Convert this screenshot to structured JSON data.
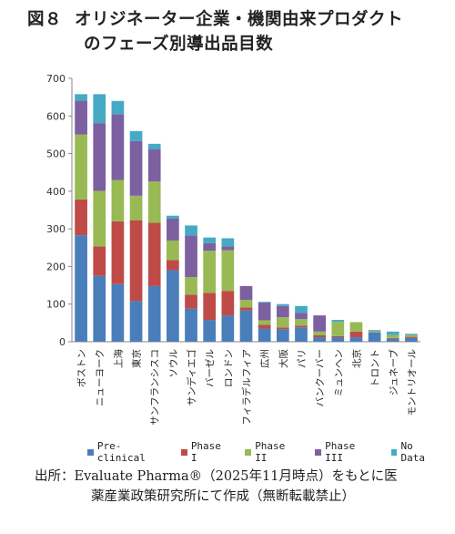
{
  "title": {
    "label": "図８",
    "line1": "オリジネーター企業・機関由来プロダクト",
    "line2": "のフェーズ別導出品目数"
  },
  "source": {
    "line1": "出所：Evaluate Pharma®（2025年11月時点）をもとに医",
    "line2": "薬産業政策研究所にて作成（無断転載禁止）"
  },
  "colors": {
    "preclinical": "#4a7ebb",
    "phase1": "#be4b48",
    "phase2": "#98b954",
    "phase3": "#7d60a0",
    "nodata": "#46aac5"
  },
  "chart_data": {
    "type": "bar",
    "stacked": true,
    "ylim": [
      0,
      700
    ],
    "yticks": [
      0,
      100,
      200,
      300,
      400,
      500,
      600,
      700
    ],
    "grid": false,
    "legend_position": "bottom",
    "categories": [
      "ボストン",
      "ニューヨーク",
      "上海",
      "東京",
      "サンフランシスコ",
      "ソウル",
      "サンディエゴ",
      "バーゼル",
      "ロンドン",
      "フィラデルフィア",
      "広州",
      "大阪",
      "パリ",
      "バンクーバー",
      "ミュンヘン",
      "北京",
      "トロント",
      "ジュネーブ",
      "モントリオール"
    ],
    "series": [
      {
        "name": "Pre-clinical",
        "values": [
          283,
          175,
          153,
          108,
          148,
          190,
          88,
          58,
          70,
          83,
          35,
          33,
          38,
          12,
          12,
          12,
          25,
          8,
          10
        ]
      },
      {
        "name": "Phase I",
        "values": [
          95,
          78,
          167,
          215,
          168,
          27,
          37,
          72,
          65,
          8,
          10,
          5,
          5,
          5,
          3,
          15,
          0,
          2,
          3
        ]
      },
      {
        "name": "Phase II",
        "values": [
          173,
          148,
          110,
          65,
          110,
          52,
          47,
          112,
          108,
          20,
          12,
          27,
          17,
          10,
          38,
          25,
          3,
          8,
          5
        ]
      },
      {
        "name": "Phase III",
        "values": [
          90,
          180,
          175,
          145,
          85,
          58,
          110,
          20,
          10,
          37,
          47,
          30,
          17,
          43,
          0,
          0,
          0,
          0,
          0
        ]
      },
      {
        "name": "No Data",
        "values": [
          17,
          77,
          35,
          27,
          15,
          8,
          27,
          15,
          22,
          0,
          2,
          5,
          18,
          0,
          5,
          0,
          3,
          9,
          3
        ]
      }
    ]
  }
}
